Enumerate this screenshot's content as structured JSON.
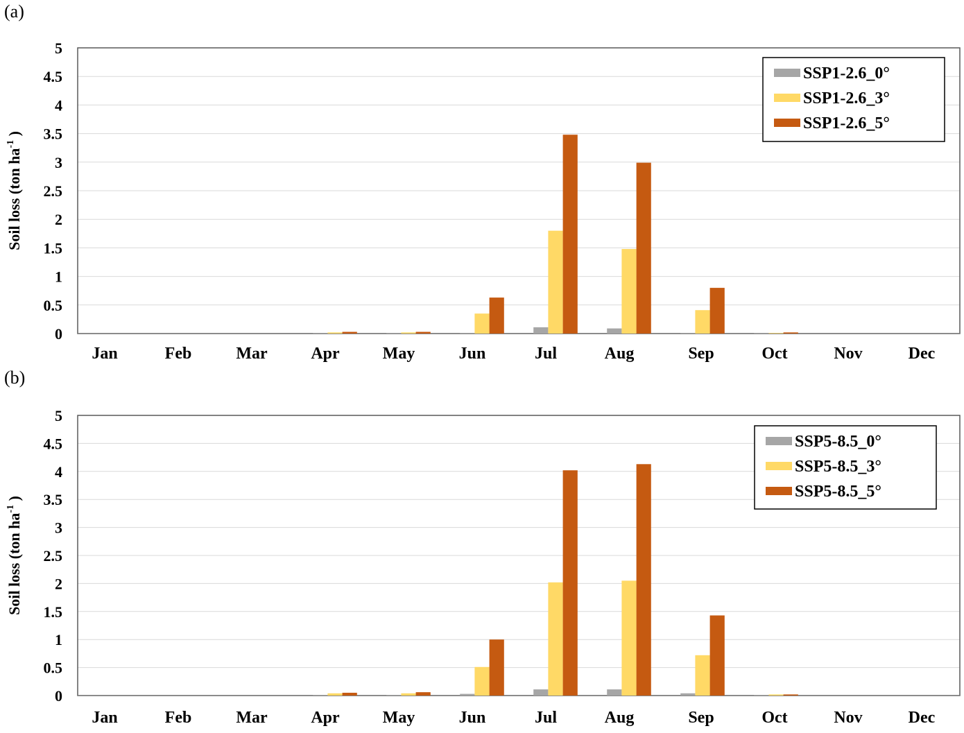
{
  "panels": [
    {
      "label": "(a)"
    },
    {
      "label": "(b)"
    }
  ],
  "chart_data": [
    {
      "type": "bar",
      "title": "",
      "ylabel_main": "Soil loss (ton ha",
      "ylabel_sup": "-1",
      "ylabel_end": ")",
      "xlabel": "",
      "ylim": [
        0,
        5
      ],
      "yticks": [
        "0",
        "0.5",
        "1",
        "1.5",
        "2",
        "2.5",
        "3",
        "3.5",
        "4",
        "4.5",
        "5"
      ],
      "grid": true,
      "legend_position": "top-right",
      "categories": [
        "Jan",
        "Feb",
        "Mar",
        "Apr",
        "May",
        "Jun",
        "Jul",
        "Aug",
        "Sep",
        "Oct",
        "Nov",
        "Dec"
      ],
      "series": [
        {
          "name": "SSP1-2.6_0°",
          "color": "#a6a6a6",
          "values": [
            0,
            0,
            0,
            0.01,
            0.01,
            0.01,
            0.11,
            0.09,
            0.01,
            0.01,
            0,
            0
          ]
        },
        {
          "name": "SSP1-2.6_3°",
          "color": "#ffd966",
          "values": [
            0,
            0,
            0,
            0.02,
            0.02,
            0.35,
            1.8,
            1.48,
            0.41,
            0.01,
            0,
            0
          ]
        },
        {
          "name": "SSP1-2.6_5°",
          "color": "#c55a11",
          "values": [
            0,
            0,
            0,
            0.03,
            0.03,
            0.63,
            3.48,
            2.99,
            0.8,
            0.02,
            0,
            0
          ]
        }
      ]
    },
    {
      "type": "bar",
      "title": "",
      "ylabel_main": "Soil loss (ton ha",
      "ylabel_sup": "-1",
      "ylabel_end": ")",
      "xlabel": "",
      "ylim": [
        0,
        5
      ],
      "yticks": [
        "0",
        "0.5",
        "1",
        "1.5",
        "2",
        "2.5",
        "3",
        "3.5",
        "4",
        "4.5",
        "5"
      ],
      "grid": true,
      "legend_position": "top-right",
      "categories": [
        "Jan",
        "Feb",
        "Mar",
        "Apr",
        "May",
        "Jun",
        "Jul",
        "Aug",
        "Sep",
        "Oct",
        "Nov",
        "Dec"
      ],
      "series": [
        {
          "name": "SSP5-8.5_0°",
          "color": "#a6a6a6",
          "values": [
            0,
            0,
            0,
            0.01,
            0.01,
            0.03,
            0.11,
            0.11,
            0.04,
            0.01,
            0,
            0
          ]
        },
        {
          "name": "SSP5-8.5_3°",
          "color": "#ffd966",
          "values": [
            0,
            0,
            0,
            0.04,
            0.04,
            0.51,
            2.02,
            2.05,
            0.72,
            0.02,
            0,
            0
          ]
        },
        {
          "name": "SSP5-8.5_5°",
          "color": "#c55a11",
          "values": [
            0,
            0,
            0,
            0.05,
            0.06,
            1.0,
            4.02,
            4.13,
            1.43,
            0.02,
            0,
            0
          ]
        }
      ]
    }
  ]
}
